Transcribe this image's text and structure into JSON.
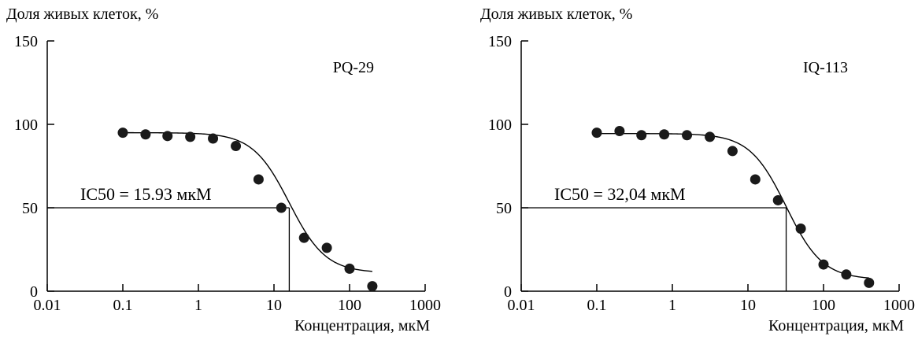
{
  "chart_data": [
    {
      "type": "scatter",
      "ylabel": "Доля живых клеток, %",
      "xlabel": "Концентрация, мкМ",
      "label": "PQ-29",
      "ic50_label": "IC50 = 15.93 мкМ",
      "ic50": 15.93,
      "x_scale": "log",
      "xlim": [
        0.01,
        1000
      ],
      "ylim": [
        0,
        150
      ],
      "x_ticks": [
        0.01,
        0.1,
        1,
        10,
        100,
        1000
      ],
      "x_tick_labels": [
        "0.01",
        "0.1",
        "1",
        "10",
        "100",
        "1000"
      ],
      "y_ticks": [
        0,
        50,
        100,
        150
      ],
      "y_tick_labels": [
        "0",
        "50",
        "100",
        "150"
      ],
      "grid": false,
      "points": [
        {
          "x": 0.1,
          "y": 95
        },
        {
          "x": 0.2,
          "y": 94
        },
        {
          "x": 0.39,
          "y": 93
        },
        {
          "x": 0.78,
          "y": 92.5
        },
        {
          "x": 1.56,
          "y": 91.5
        },
        {
          "x": 3.13,
          "y": 87
        },
        {
          "x": 6.25,
          "y": 67
        },
        {
          "x": 12.5,
          "y": 50
        },
        {
          "x": 25,
          "y": 32
        },
        {
          "x": 50,
          "y": 26
        },
        {
          "x": 100,
          "y": 13.5
        },
        {
          "x": 200,
          "y": 3
        }
      ],
      "fit": {
        "top": 95,
        "bottom": 11,
        "ec50": 15.93,
        "hill": 1.8,
        "x_from": 0.1,
        "x_to": 200
      }
    },
    {
      "type": "scatter",
      "ylabel": "Доля живых клеток, %",
      "xlabel": "Концентрация, мкМ",
      "label": "IQ-113",
      "ic50_label": "IC50 = 32,04 мкМ",
      "ic50": 32.04,
      "x_scale": "log",
      "xlim": [
        0.01,
        1000
      ],
      "ylim": [
        0,
        150
      ],
      "x_ticks": [
        0.01,
        0.1,
        1,
        10,
        100,
        1000
      ],
      "x_tick_labels": [
        "0.01",
        "0.1",
        "1",
        "10",
        "100",
        "1000"
      ],
      "y_ticks": [
        0,
        50,
        100,
        150
      ],
      "y_tick_labels": [
        "0",
        "50",
        "100",
        "150"
      ],
      "grid": false,
      "points": [
        {
          "x": 0.1,
          "y": 95
        },
        {
          "x": 0.2,
          "y": 96
        },
        {
          "x": 0.39,
          "y": 93.5
        },
        {
          "x": 0.78,
          "y": 94
        },
        {
          "x": 1.56,
          "y": 93.5
        },
        {
          "x": 3.13,
          "y": 92.5
        },
        {
          "x": 6.25,
          "y": 84
        },
        {
          "x": 12.5,
          "y": 67
        },
        {
          "x": 25,
          "y": 54.5
        },
        {
          "x": 50,
          "y": 37.5
        },
        {
          "x": 100,
          "y": 16
        },
        {
          "x": 200,
          "y": 10
        },
        {
          "x": 400,
          "y": 5
        }
      ],
      "fit": {
        "top": 94.5,
        "bottom": 7,
        "ec50": 32.04,
        "hill": 1.8,
        "x_from": 0.1,
        "x_to": 400
      }
    }
  ]
}
